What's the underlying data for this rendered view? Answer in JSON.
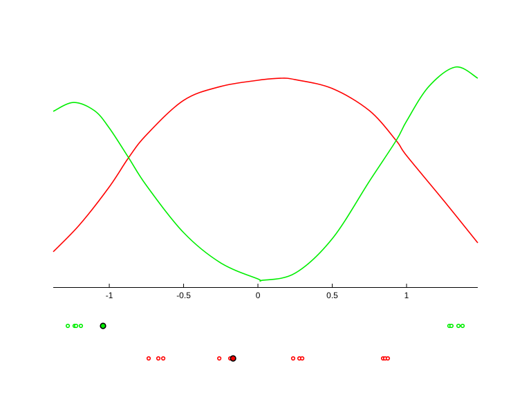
{
  "chart_data": {
    "type": "line",
    "title": "",
    "xlabel": "",
    "ylabel": "",
    "xlim": [
      -1.377,
      1.479
    ],
    "ylim": [
      0,
      1
    ],
    "grid": false,
    "x_ticks": [
      -1,
      -0.5,
      0,
      0.5,
      1
    ],
    "x_tick_labels": [
      "-1",
      "-0.5",
      "0",
      "0.5",
      "1"
    ],
    "series": [
      {
        "color": "#ff0000",
        "x": [
          -1.377,
          -1.2,
          -1.0,
          -0.87,
          -0.75,
          -0.5,
          -0.25,
          0,
          0.15,
          0.25,
          0.5,
          0.75,
          0.93,
          1.0,
          1.25,
          1.479
        ],
        "y": [
          0.155,
          0.273,
          0.439,
          0.567,
          0.667,
          0.818,
          0.879,
          0.906,
          0.915,
          0.909,
          0.87,
          0.773,
          0.642,
          0.576,
          0.379,
          0.194
        ]
      },
      {
        "color": "#00ee00",
        "x": [
          -1.377,
          -1.24,
          -1.1,
          -1.0,
          -0.87,
          -0.75,
          -0.5,
          -0.25,
          0,
          0.03,
          0.25,
          0.5,
          0.75,
          0.93,
          1.0,
          1.15,
          1.33,
          1.479
        ],
        "y": [
          0.77,
          0.809,
          0.773,
          0.697,
          0.567,
          0.445,
          0.239,
          0.106,
          0.036,
          0.03,
          0.061,
          0.212,
          0.464,
          0.642,
          0.727,
          0.879,
          0.964,
          0.915
        ]
      }
    ],
    "sample_points": [
      {
        "color": "#00ee00",
        "x": [
          -1.279,
          -1.233,
          -1.223,
          -1.191,
          1.288,
          1.302,
          1.349,
          1.377
        ],
        "highlight": -1.042
      },
      {
        "color": "#ff0000",
        "x": [
          -0.735,
          -0.67,
          -0.637,
          -0.26,
          -0.186,
          0.237,
          0.279,
          0.298,
          0.842,
          0.856,
          0.874
        ],
        "highlight": -0.167
      }
    ]
  }
}
